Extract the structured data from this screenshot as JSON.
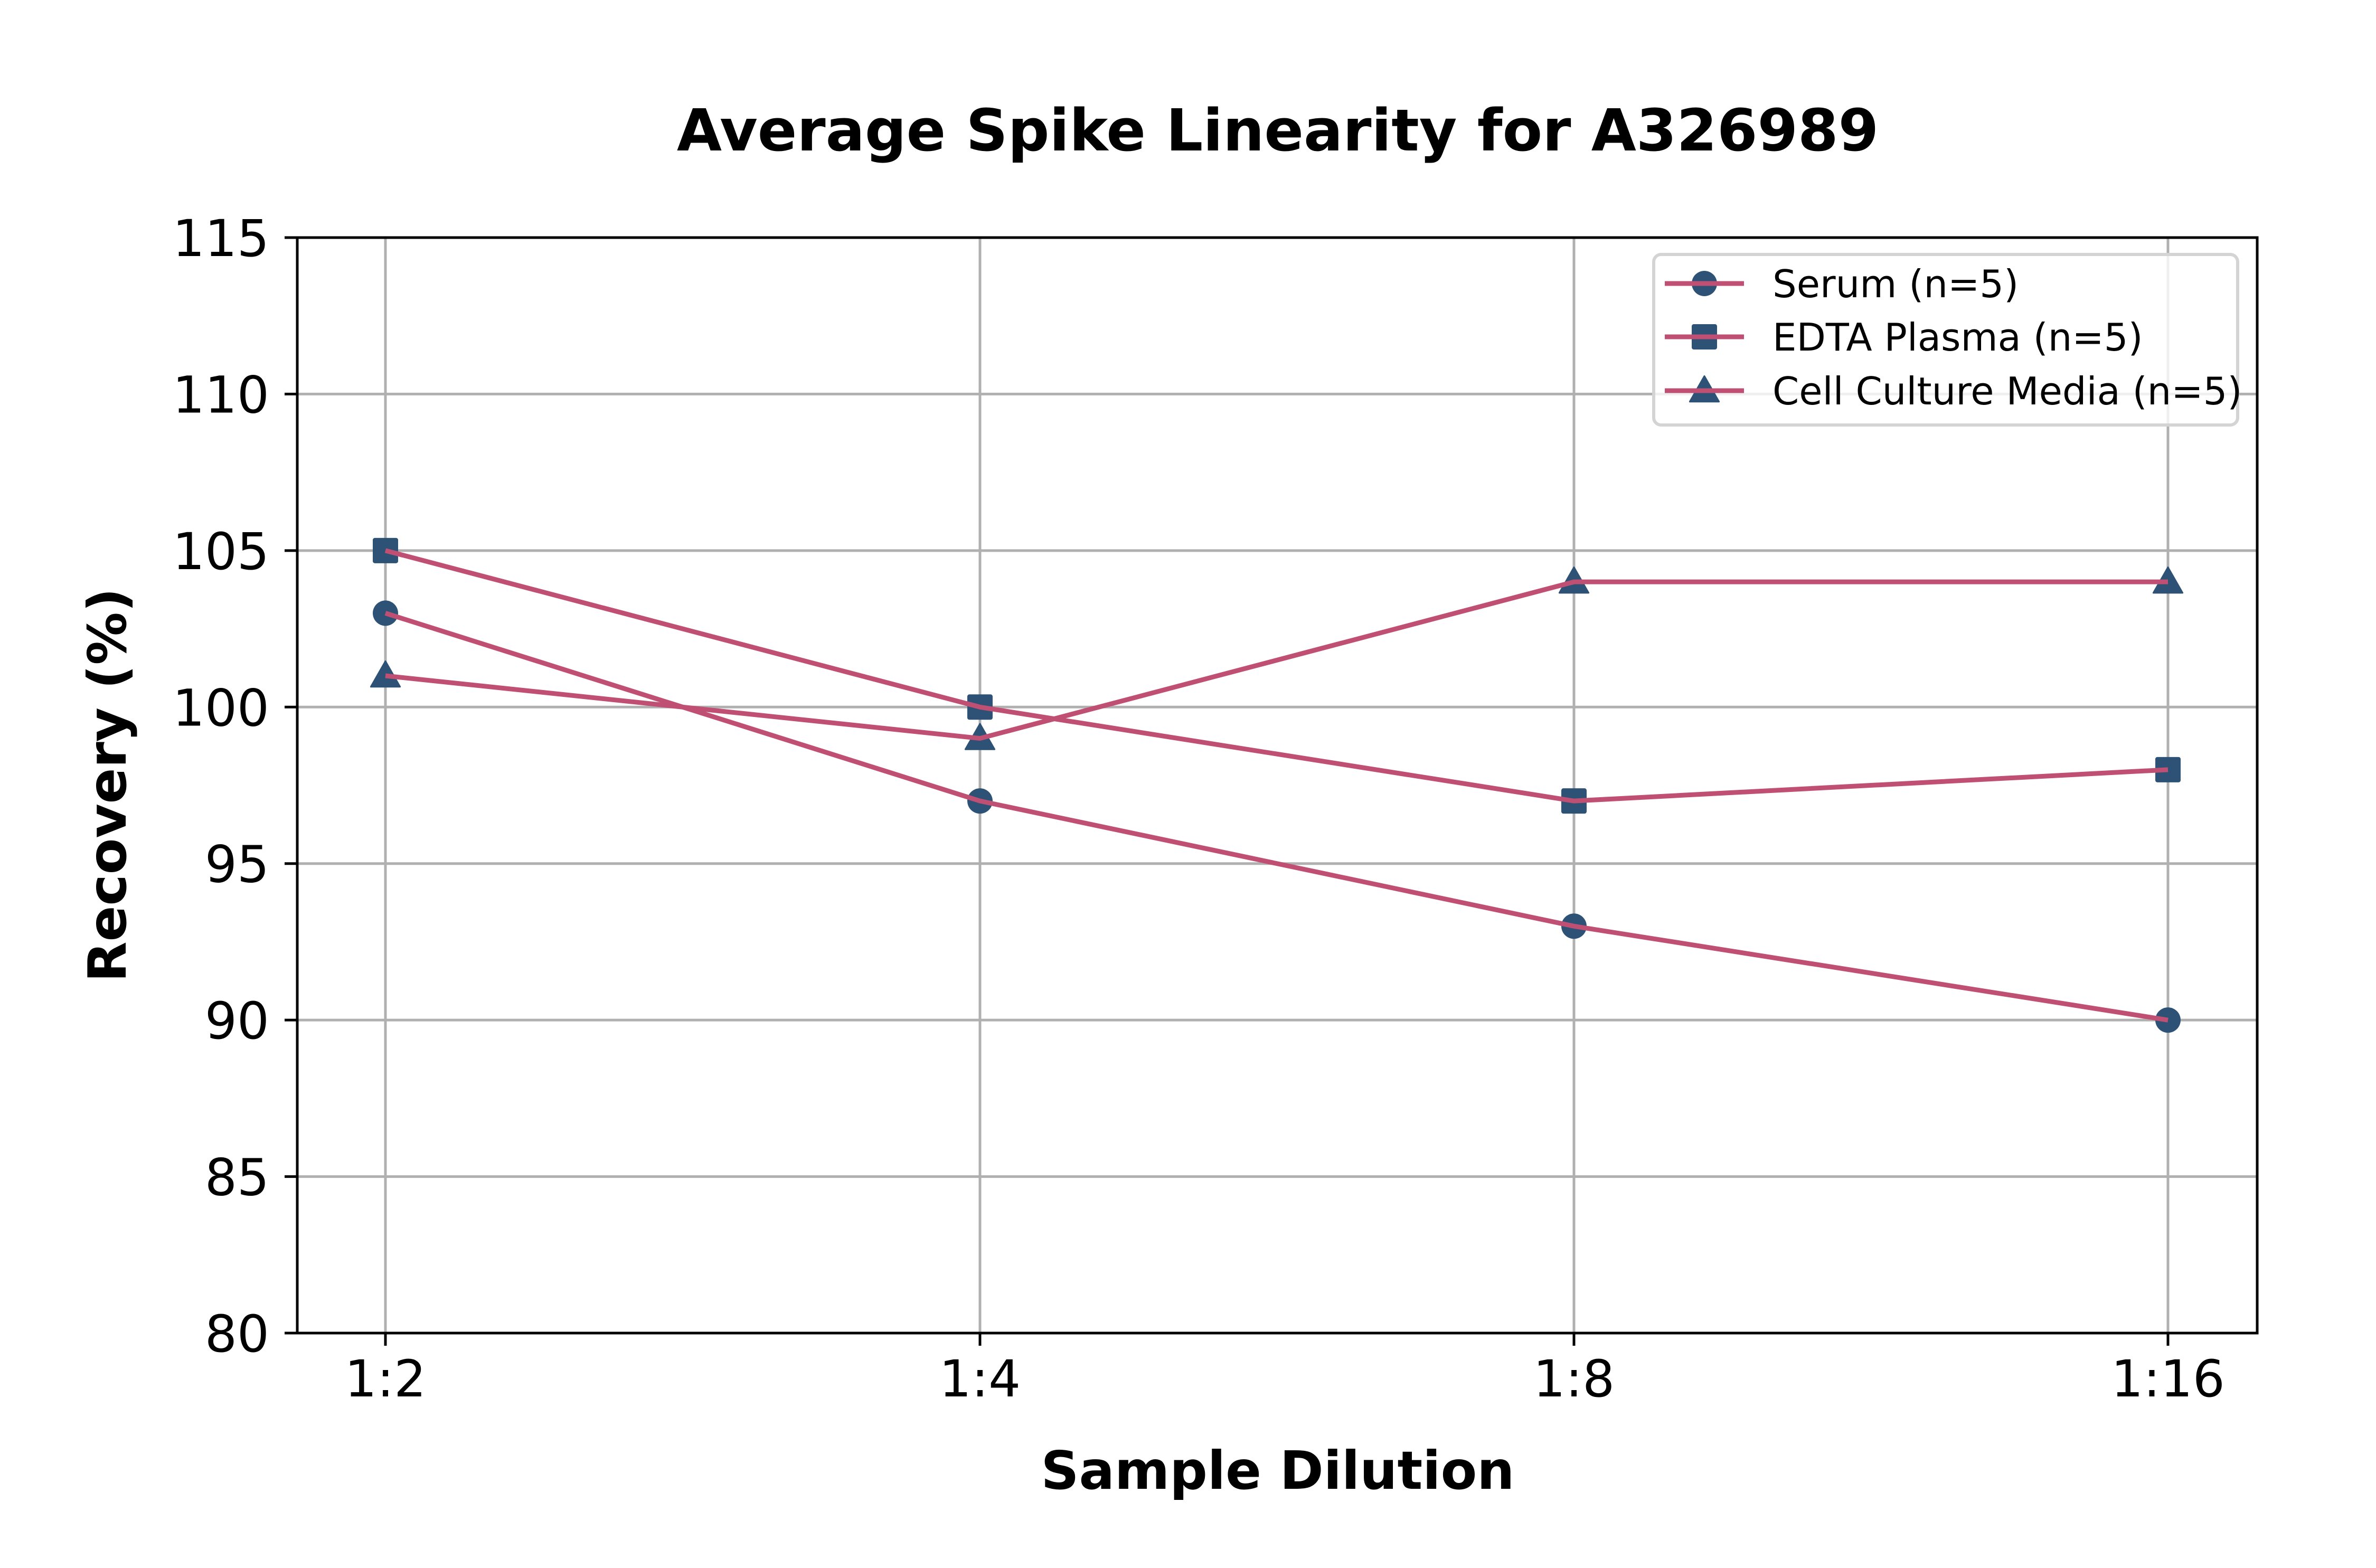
{
  "chart_data": {
    "type": "line",
    "title": "Average Spike Linearity for A326989",
    "xlabel": "Sample Dilution",
    "ylabel": "Recovery (%)",
    "categories": [
      "1:2",
      "1:4",
      "1:8",
      "1:16"
    ],
    "ylim": [
      80,
      115
    ],
    "yticks": [
      80,
      85,
      90,
      95,
      100,
      105,
      110,
      115
    ],
    "grid": true,
    "legend_position": "top-right",
    "line_color": "#c05073",
    "marker_color": "#2e5276",
    "series": [
      {
        "name": "Serum (n=5)",
        "marker": "circle",
        "values": [
          103,
          97,
          93,
          90
        ]
      },
      {
        "name": "EDTA Plasma (n=5)",
        "marker": "square",
        "values": [
          105,
          100,
          97,
          98
        ]
      },
      {
        "name": "Cell Culture Media (n=5)",
        "marker": "triangle",
        "values": [
          101,
          99,
          104,
          104
        ]
      }
    ]
  }
}
